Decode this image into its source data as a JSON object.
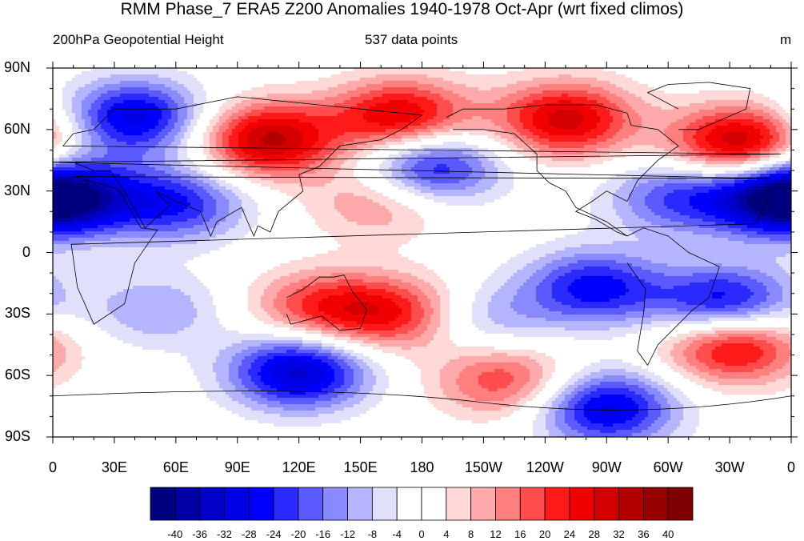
{
  "title": "RMM Phase_7 ERA5 Z200 Anomalies 1940-1978 Oct-Apr (wrt fixed climos)",
  "subtitle_left": "200hPa Geopotential Height",
  "subtitle_center": "537 data points",
  "subtitle_right": "m",
  "lat_labels": [
    "90N",
    "60N",
    "30N",
    "0",
    "30S",
    "60S",
    "90S"
  ],
  "lon_labels": [
    "0",
    "30E",
    "60E",
    "90E",
    "120E",
    "150E",
    "180",
    "150W",
    "120W",
    "90W",
    "60W",
    "30W",
    "0"
  ],
  "colorbar": {
    "labels": [
      "-40",
      "-36",
      "-32",
      "-28",
      "-24",
      "-20",
      "-16",
      "-12",
      "-8",
      "-4",
      "0",
      "4",
      "8",
      "12",
      "16",
      "20",
      "24",
      "28",
      "32",
      "36",
      "40"
    ],
    "colors": [
      "#00007f",
      "#0000a5",
      "#0000c8",
      "#0000e6",
      "#0000ff",
      "#2a2aff",
      "#5a5aff",
      "#8a8aff",
      "#b4b4ff",
      "#e0e0fa",
      "#ffffff",
      "#ffffff",
      "#ffd8d8",
      "#ffaaaa",
      "#ff7f7f",
      "#ff4c4c",
      "#ff1a1a",
      "#f00000",
      "#d40000",
      "#b20000",
      "#960000",
      "#7f0000"
    ]
  },
  "chart_data": {
    "type": "heatmap",
    "variable": "200hPa Geopotential Height",
    "units": "m",
    "levels": [
      -40,
      -36,
      -32,
      -28,
      -24,
      -20,
      -16,
      -12,
      -8,
      -4,
      0,
      4,
      8,
      12,
      16,
      20,
      24,
      28,
      32,
      36,
      40
    ],
    "lon_range": [
      0,
      360
    ],
    "lat_range": [
      -90,
      90
    ],
    "anomaly_centers": [
      {
        "lon": 40,
        "lat": 66,
        "value": -30
      },
      {
        "lon": 5,
        "lat": 27,
        "value": -26
      },
      {
        "lon": 60,
        "lat": 24,
        "value": -24
      },
      {
        "lon": 105,
        "lat": 55,
        "value": 33
      },
      {
        "lon": 170,
        "lat": 66,
        "value": 30
      },
      {
        "lon": 250,
        "lat": 65,
        "value": 30
      },
      {
        "lon": 335,
        "lat": 53,
        "value": 34
      },
      {
        "lon": 184,
        "lat": 42,
        "value": -28
      },
      {
        "lon": 160,
        "lat": 25,
        "value": 14
      },
      {
        "lon": 305,
        "lat": 27,
        "value": -20
      },
      {
        "lon": 355,
        "lat": 27,
        "value": -28
      },
      {
        "lon": 264,
        "lat": -17,
        "value": -26
      },
      {
        "lon": 328,
        "lat": -25,
        "value": -30
      },
      {
        "lon": 130,
        "lat": -27,
        "value": 20
      },
      {
        "lon": 168,
        "lat": -30,
        "value": 22
      },
      {
        "lon": 120,
        "lat": -58,
        "value": -34
      },
      {
        "lon": 220,
        "lat": -62,
        "value": 20
      },
      {
        "lon": 332,
        "lat": -45,
        "value": 30
      },
      {
        "lon": 270,
        "lat": -76,
        "value": -30
      },
      {
        "lon": 50,
        "lat": -28,
        "value": -12
      },
      {
        "lon": 210,
        "lat": -33,
        "value": -12
      }
    ]
  }
}
